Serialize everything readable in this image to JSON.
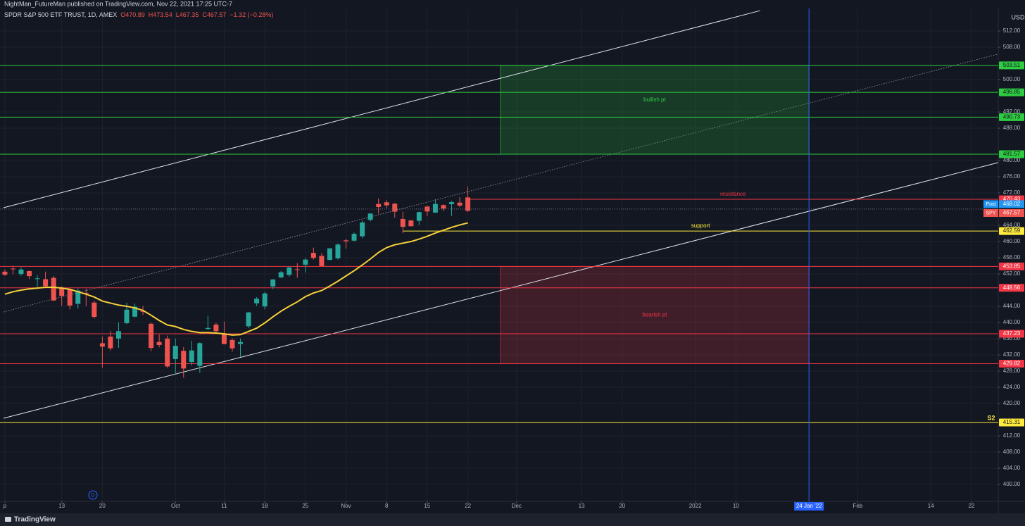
{
  "chart_data": {
    "type": "candlestick",
    "publisher": "NightMan_FutureMan published on TradingView.com, Nov 22, 2021 17:25 UTC-7",
    "title": "SPDR S&P 500 ETF TRUST, 1D, AMEX",
    "header_values": [
      "O470.89",
      "H473.54",
      "L467.35",
      "C467.57",
      "−1.32 (−0.28%)"
    ],
    "currency": "USD",
    "footer": "TradingView",
    "interval_marker": "D",
    "up_color": "#26a69a",
    "down_color": "#ef5350",
    "grid": true,
    "xlim": [
      -0.6,
      122.3
    ],
    "ylim": [
      395.83,
      517.57
    ],
    "xticks": [
      {
        "value": 0,
        "label": "p"
      },
      {
        "value": 7,
        "label": "13"
      },
      {
        "value": 12,
        "label": "20"
      },
      {
        "value": 21,
        "label": "Oct"
      },
      {
        "value": 27,
        "label": "11"
      },
      {
        "value": 32,
        "label": "18"
      },
      {
        "value": 37,
        "label": "25"
      },
      {
        "value": 42,
        "label": "Nov"
      },
      {
        "value": 47,
        "label": "8"
      },
      {
        "value": 52,
        "label": "15"
      },
      {
        "value": 57,
        "label": "22"
      },
      {
        "value": 63,
        "label": "Dec"
      },
      {
        "value": 71,
        "label": "13"
      },
      {
        "value": 76,
        "label": "20"
      },
      {
        "value": 85,
        "label": "2022"
      },
      {
        "value": 90,
        "label": "10"
      },
      {
        "value": 105,
        "label": "Feb"
      },
      {
        "value": 114,
        "label": "14"
      },
      {
        "value": 119,
        "label": "22"
      }
    ],
    "yticks": [
      {
        "value": 400,
        "label": "400.00"
      },
      {
        "value": 404,
        "label": "404.00"
      },
      {
        "value": 408,
        "label": "408.00"
      },
      {
        "value": 412,
        "label": "412.00"
      },
      {
        "value": 420,
        "label": "420.00"
      },
      {
        "value": 424,
        "label": "424.00"
      },
      {
        "value": 428,
        "label": "428.00"
      },
      {
        "value": 432,
        "label": "432.00"
      },
      {
        "value": 436,
        "label": "436.00"
      },
      {
        "value": 440,
        "label": "440.00"
      },
      {
        "value": 444,
        "label": "444.00"
      },
      {
        "value": 452,
        "label": "452.00"
      },
      {
        "value": 456,
        "label": "456.00"
      },
      {
        "value": 460,
        "label": "460.00"
      },
      {
        "value": 464,
        "label": "464.00"
      },
      {
        "value": 472,
        "label": "472.00"
      },
      {
        "value": 476,
        "label": "476.00"
      },
      {
        "value": 480,
        "label": "480.00"
      },
      {
        "value": 488,
        "label": "488.00"
      },
      {
        "value": 492,
        "label": "492.00"
      },
      {
        "value": 500,
        "label": "500.00"
      },
      {
        "value": 508,
        "label": "508.00"
      },
      {
        "value": 512,
        "label": "512.00"
      }
    ],
    "x": [
      0,
      1,
      2,
      3,
      4,
      5,
      6,
      7,
      8,
      9,
      10,
      11,
      12,
      13,
      14,
      15,
      16,
      17,
      18,
      19,
      20,
      21,
      22,
      23,
      24,
      25,
      26,
      27,
      28,
      29,
      30,
      31,
      32,
      33,
      34,
      35,
      36,
      37,
      38,
      39,
      40,
      41,
      42,
      43,
      44,
      45,
      46,
      47,
      48,
      49,
      50,
      51,
      52,
      53,
      54,
      55,
      56,
      57
    ],
    "open": [
      452.56,
      453.32,
      451.98,
      452.71,
      450.89,
      450.7,
      451.04,
      448.64,
      448.12,
      444.62,
      447.32,
      444.92,
      434.88,
      436.53,
      436.05,
      439.85,
      441.44,
      442.81,
      439.69,
      435.19,
      436.02,
      430.98,
      433.0,
      430.24,
      429.27,
      438.39,
      439.48,
      437.16,
      435.67,
      434.71,
      439.08,
      444.75,
      443.97,
      448.92,
      451.13,
      451.77,
      453.13,
      454.28,
      457.2,
      456.45,
      455.46,
      455.87,
      460.3,
      460.22,
      461.3,
      465.36,
      469.28,
      469.7,
      469.32,
      465.58,
      465.21,
      465.12,
      468.64,
      467.15,
      469.0,
      469.24,
      469.61,
      470.89
    ],
    "high": [
      453.11,
      454.05,
      453.63,
      452.81,
      451.67,
      452.57,
      451.49,
      448.92,
      448.34,
      448.41,
      448.36,
      445.37,
      436.56,
      437.91,
      440.03,
      444.89,
      444.67,
      444.05,
      440.04,
      437.04,
      436.77,
      436.03,
      433.96,
      435.49,
      435.12,
      441.68,
      439.89,
      440.26,
      436.1,
      436.05,
      442.66,
      446.26,
      447.55,
      450.71,
      452.73,
      453.83,
      454.67,
      455.9,
      458.49,
      457.16,
      458.4,
      459.56,
      460.7,
      462.23,
      465.15,
      467.0,
      470.65,
      470.23,
      469.57,
      467.38,
      465.29,
      467.38,
      468.81,
      470.49,
      469.19,
      470.01,
      470.94,
      473.54
    ],
    "low": [
      451.55,
      451.91,
      451.55,
      450.74,
      448.86,
      448.72,
      445.31,
      444.11,
      443.22,
      443.44,
      444.02,
      441.02,
      428.86,
      433.07,
      433.75,
      439.6,
      441.21,
      441.9,
      432.94,
      433.85,
      428.78,
      427.23,
      426.36,
      429.39,
      427.54,
      438.2,
      437.19,
      434.62,
      432.78,
      431.54,
      438.58,
      444.09,
      443.27,
      448.27,
      451.01,
      451.31,
      451.05,
      452.39,
      455.56,
      453.86,
      455.45,
      455.56,
      458.2,
      460.08,
      460.83,
      464.99,
      466.92,
      468.2,
      465.88,
      462.04,
      463.75,
      464.11,
      466.23,
      467.07,
      467.48,
      466.34,
      468.5,
      467.35
    ],
    "close": [
      451.8,
      453.19,
      453.08,
      451.46,
      450.91,
      448.98,
      445.44,
      446.58,
      444.17,
      447.88,
      447.17,
      441.4,
      434.04,
      433.63,
      437.86,
      443.18,
      443.91,
      442.64,
      433.72,
      434.45,
      429.14,
      434.24,
      428.64,
      433.1,
      434.9,
      438.66,
      437.86,
      434.69,
      433.62,
      435.18,
      442.5,
      445.87,
      447.19,
      450.64,
      452.41,
      453.59,
      453.12,
      455.55,
      455.96,
      453.94,
      458.32,
      459.25,
      460.04,
      461.9,
      464.72,
      466.91,
      468.53,
      468.93,
      467.38,
      463.62,
      463.77,
      467.27,
      467.43,
      469.28,
      468.14,
      469.73,
      468.89,
      467.57
    ],
    "ma": {
      "color": "#f7d13a",
      "values": [
        447.0,
        447.6,
        448.0,
        448.3,
        448.5,
        448.7,
        448.7,
        448.5,
        448.2,
        447.6,
        447.0,
        446.3,
        445.3,
        444.8,
        444.3,
        444.0,
        443.6,
        443.0,
        441.8,
        440.5,
        439.4,
        439.0,
        438.3,
        437.8,
        437.5,
        437.5,
        437.4,
        437.2,
        436.9,
        437.0,
        437.8,
        438.6,
        439.9,
        441.4,
        442.8,
        444.0,
        445.1,
        446.4,
        447.3,
        447.9,
        449.0,
        450.2,
        451.5,
        452.8,
        454.2,
        455.7,
        457.3,
        458.5,
        459.2,
        459.6,
        460.0,
        460.6,
        461.3,
        462.1,
        462.8,
        463.5,
        464.1,
        464.6
      ]
    },
    "levels": [
      {
        "value": 503.51,
        "color": "#2ecc40"
      },
      {
        "value": 496.85,
        "color": "#2ecc40"
      },
      {
        "value": 490.73,
        "color": "#2ecc40"
      },
      {
        "value": 481.57,
        "color": "#2ecc40"
      },
      {
        "value": 470.43,
        "color": "#f23645",
        "from": 57,
        "label": "resistance"
      },
      {
        "value": 462.59,
        "color": "#ffeb3b",
        "from": 49,
        "label": "support"
      },
      {
        "value": 453.85,
        "color": "#f23645"
      },
      {
        "value": 448.56,
        "color": "#f23645"
      },
      {
        "value": 437.23,
        "color": "#f23645"
      },
      {
        "value": 429.82,
        "color": "#f23645"
      },
      {
        "value": 415.31,
        "color": "#ffeb3b",
        "tag": "S2"
      }
    ],
    "zones": [
      {
        "label": "bullish pt",
        "top": 503.51,
        "bottom": 481.57,
        "from": 61,
        "to": 99,
        "color": "#2ecc40"
      },
      {
        "label": "bearish pt",
        "top": 453.85,
        "bottom": 429.82,
        "from": 61,
        "to": 99,
        "color": "#f23645"
      }
    ],
    "trendlines": [
      {
        "x": [
          -0.17,
          93.0
        ],
        "y": [
          468.35,
          517.04
        ],
        "color": "#e0e3eb",
        "dashed": false
      },
      {
        "x": [
          -0.17,
          122.3
        ],
        "y": [
          416.35,
          479.5
        ],
        "color": "#e0e3eb",
        "dashed": false
      },
      {
        "x": [
          -0.17,
          122.3
        ],
        "y": [
          442.6,
          506.3
        ],
        "color": "#9598a1",
        "dashed": true
      }
    ],
    "vline": {
      "x": 99,
      "label": "24 Jan '22",
      "color": "#2962ff"
    },
    "price_labels": [
      {
        "name": "Post",
        "value": 468.02,
        "color": "#2196f3"
      },
      {
        "name": "SPY",
        "value": 467.57,
        "color": "#ef5350"
      }
    ]
  }
}
